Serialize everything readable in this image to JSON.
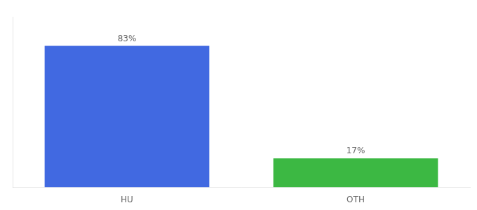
{
  "chart_data": {
    "type": "bar",
    "categories": [
      "HU",
      "OTH"
    ],
    "values": [
      83,
      17
    ],
    "value_labels": [
      "83%",
      "17%"
    ],
    "colors": [
      "#4169E1",
      "#3CB843"
    ],
    "ylim": [
      0,
      100
    ],
    "grid": false,
    "data_labels": true,
    "tick_labels": "x"
  }
}
